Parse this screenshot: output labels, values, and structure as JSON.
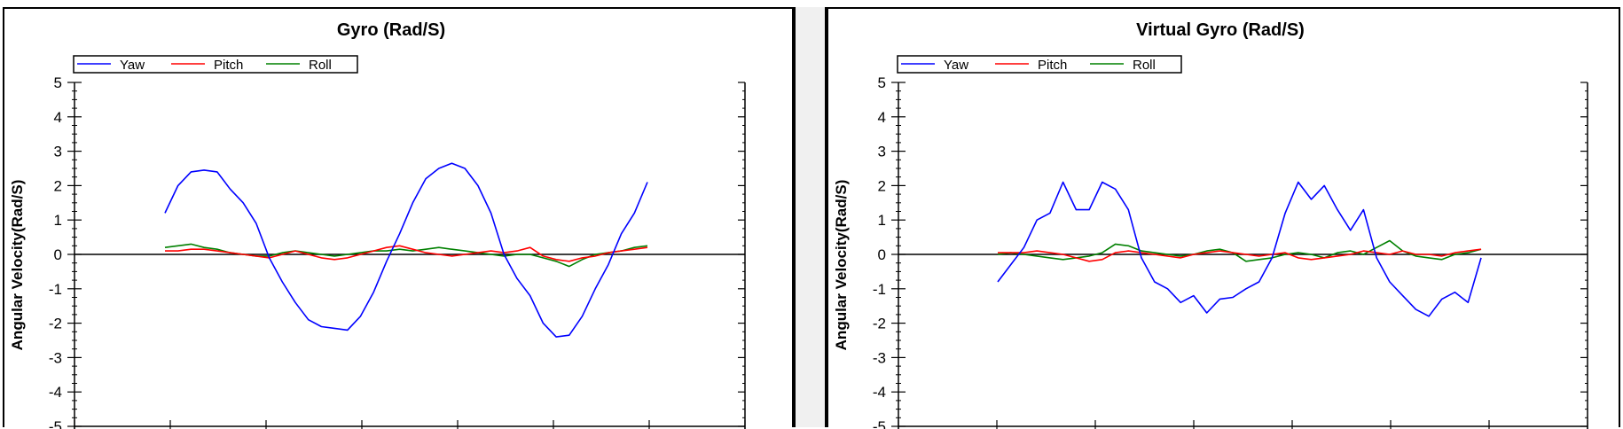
{
  "chart_data": [
    {
      "type": "line",
      "title": "Gyro (Rad/S)",
      "ylabel": "Angular Velocity(Rad/S)",
      "xlabel": "",
      "ylim": [
        -5,
        5
      ],
      "yticks": [
        "5",
        "4",
        "3",
        "2",
        "1",
        "0",
        "-1",
        "-2",
        "-3",
        "-4",
        "-5"
      ],
      "grid": false,
      "legend_position": "top-left",
      "series": [
        {
          "name": "Yaw",
          "color": "#0000ff",
          "values": [
            1.2,
            2.0,
            2.4,
            2.45,
            2.4,
            1.9,
            1.5,
            0.9,
            -0.1,
            -0.8,
            -1.4,
            -1.9,
            -2.1,
            -2.15,
            -2.2,
            -1.8,
            -1.1,
            -0.2,
            0.6,
            1.5,
            2.2,
            2.5,
            2.65,
            2.5,
            2.0,
            1.2,
            0.0,
            -0.7,
            -1.2,
            -2.0,
            -2.4,
            -2.35,
            -1.8,
            -1.0,
            -0.3,
            0.6,
            1.2,
            2.1
          ]
        },
        {
          "name": "Pitch",
          "color": "#ff0000",
          "values": [
            0.1,
            0.1,
            0.15,
            0.15,
            0.1,
            0.05,
            0.0,
            -0.05,
            -0.1,
            0.0,
            0.1,
            0.0,
            -0.1,
            -0.15,
            -0.1,
            0.0,
            0.1,
            0.2,
            0.25,
            0.15,
            0.05,
            0.0,
            -0.05,
            0.0,
            0.05,
            0.1,
            0.05,
            0.1,
            0.2,
            -0.05,
            -0.15,
            -0.2,
            -0.1,
            -0.05,
            0.05,
            0.1,
            0.15,
            0.2
          ]
        },
        {
          "name": "Roll",
          "color": "#008000",
          "values": [
            0.2,
            0.25,
            0.3,
            0.2,
            0.15,
            0.05,
            0.0,
            -0.05,
            -0.05,
            0.05,
            0.1,
            0.05,
            0.0,
            -0.05,
            0.0,
            0.05,
            0.1,
            0.1,
            0.15,
            0.1,
            0.15,
            0.2,
            0.15,
            0.1,
            0.05,
            0.0,
            -0.05,
            0.0,
            0.0,
            -0.1,
            -0.2,
            -0.35,
            -0.15,
            0.0,
            0.05,
            0.1,
            0.2,
            0.25
          ]
        }
      ]
    },
    {
      "type": "line",
      "title": "Virtual Gyro (Rad/S)",
      "ylabel": "Angular Velocity(Rad/S)",
      "xlabel": "",
      "ylim": [
        -5,
        5
      ],
      "yticks": [
        "5",
        "4",
        "3",
        "2",
        "1",
        "0",
        "-1",
        "-2",
        "-3",
        "-4",
        "-5"
      ],
      "grid": false,
      "legend_position": "top-left",
      "series": [
        {
          "name": "Yaw",
          "color": "#0000ff",
          "values": [
            -0.8,
            -0.3,
            0.2,
            1.0,
            1.2,
            2.1,
            1.3,
            1.3,
            2.1,
            1.9,
            1.3,
            -0.1,
            -0.8,
            -1.0,
            -1.4,
            -1.2,
            -1.7,
            -1.3,
            -1.25,
            -1.0,
            -0.8,
            -0.1,
            1.2,
            2.1,
            1.6,
            2.0,
            1.3,
            0.7,
            1.3,
            -0.1,
            -0.8,
            -1.2,
            -1.6,
            -1.8,
            -1.3,
            -1.1,
            -1.4,
            -0.1
          ]
        },
        {
          "name": "Pitch",
          "color": "#ff0000",
          "values": [
            0.05,
            0.05,
            0.05,
            0.1,
            0.05,
            0.0,
            -0.1,
            -0.2,
            -0.15,
            0.05,
            0.1,
            0.05,
            0.0,
            -0.05,
            -0.1,
            0.0,
            0.05,
            0.1,
            0.05,
            0.0,
            -0.05,
            0.0,
            0.05,
            -0.1,
            -0.15,
            -0.1,
            -0.05,
            0.0,
            0.1,
            0.05,
            0.0,
            0.1,
            0.0,
            0.0,
            -0.05,
            0.05,
            0.1,
            0.15
          ]
        },
        {
          "name": "Roll",
          "color": "#008000",
          "values": [
            0.0,
            0.05,
            0.0,
            -0.05,
            -0.1,
            -0.15,
            -0.1,
            -0.05,
            0.05,
            0.3,
            0.25,
            0.1,
            0.05,
            0.0,
            -0.05,
            0.0,
            0.1,
            0.15,
            0.05,
            -0.2,
            -0.15,
            -0.1,
            0.0,
            0.05,
            0.0,
            -0.1,
            0.05,
            0.1,
            0.0,
            0.2,
            0.4,
            0.1,
            -0.05,
            -0.1,
            -0.15,
            0.0,
            0.05,
            0.15
          ]
        }
      ]
    }
  ]
}
